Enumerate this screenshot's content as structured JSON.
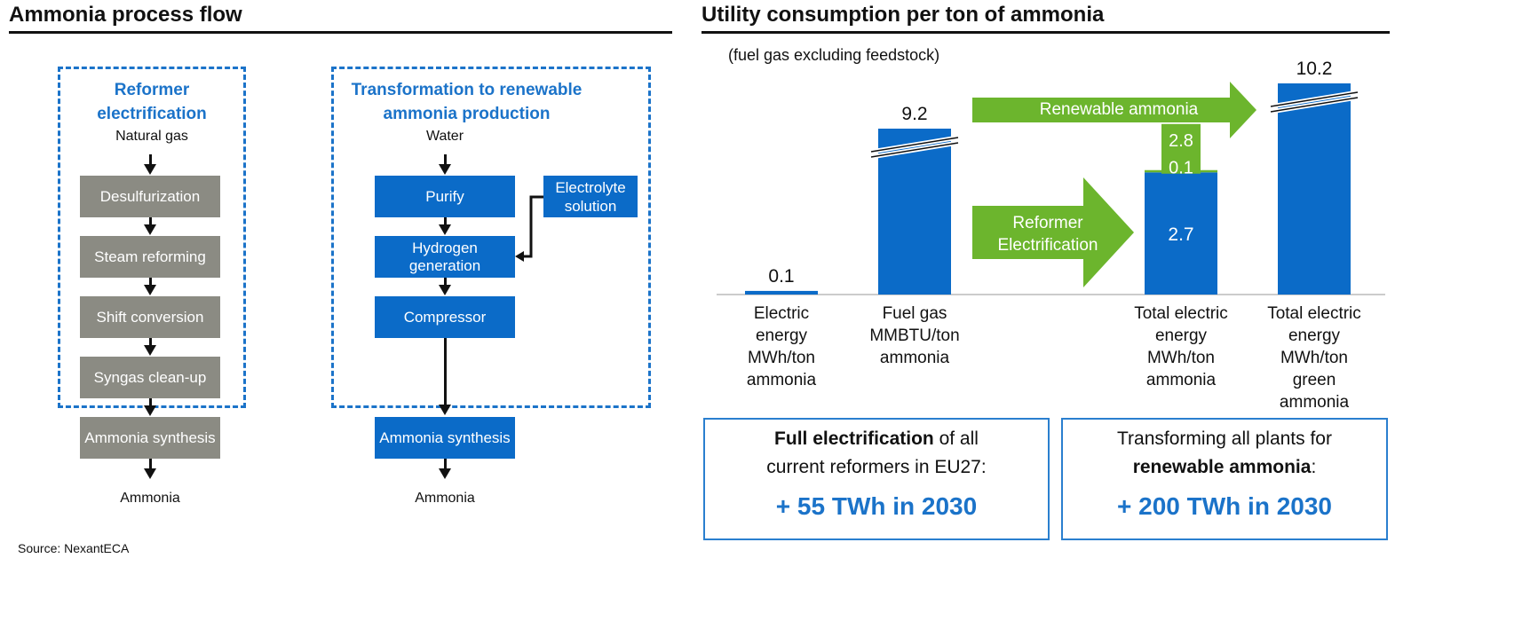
{
  "left": {
    "title": "Ammonia process flow",
    "reformer": {
      "title_line1": "Reformer",
      "title_line2": "electrification",
      "input": "Natural gas",
      "steps": [
        "Desulfurization",
        "Steam reforming",
        "Shift conversion",
        "Syngas clean-up"
      ],
      "synthesis": "Ammonia synthesis",
      "output": "Ammonia"
    },
    "renewable": {
      "title_line1": "Transformation to renewable",
      "title_line2": "ammonia production",
      "input": "Water",
      "steps": [
        "Purify",
        "Hydrogen generation",
        "Compressor"
      ],
      "side_line1": "Electrolyte",
      "side_line2": "solution",
      "synthesis": "Ammonia synthesis",
      "output": "Ammonia"
    },
    "source": "Source: NexantECA"
  },
  "right": {
    "title": "Utility consumption per ton of ammonia",
    "subtitle": "(fuel gas excluding feedstock)",
    "arrow_renewable": "Renewable ammonia",
    "arrow_reformer_line1": "Reformer",
    "arrow_reformer_line2": "Electrification",
    "box1": {
      "bold": "Full electrification",
      "rest1": " of all",
      "line2": "current reformers in EU27:",
      "value": "+ 55 TWh in 2030"
    },
    "box2": {
      "line1": "Transforming all plants for",
      "bold": "renewable ammonia",
      "rest2": ":",
      "value": "+ 200 TWh in 2030"
    }
  },
  "chart_data": {
    "type": "bar",
    "title": "Utility consumption per ton of ammonia",
    "subtitle": "(fuel gas excluding feedstock)",
    "categories": [
      [
        "Electric",
        "energy",
        "MWh/ton",
        "ammonia"
      ],
      [
        "Fuel gas",
        "MMBTU/ton",
        "ammonia"
      ],
      [
        "Total electric",
        "energy",
        "MWh/ton",
        "ammonia"
      ],
      [
        "Total electric",
        "energy",
        "MWh/ton",
        "green",
        "ammonia"
      ]
    ],
    "values": [
      0.1,
      9.2,
      2.8,
      10.2
    ],
    "value_labels": [
      "0.1",
      "9.2",
      "2.8",
      "10.2"
    ],
    "stacked_third": [
      {
        "name": "base",
        "value": 2.7,
        "label": "2.7"
      },
      {
        "name": "added",
        "value": 0.1,
        "label": "0.1"
      }
    ],
    "broken_axis_bars": [
      1,
      3
    ],
    "colors": {
      "bar": "#0b6bc8",
      "green": "#6cb52d"
    }
  }
}
